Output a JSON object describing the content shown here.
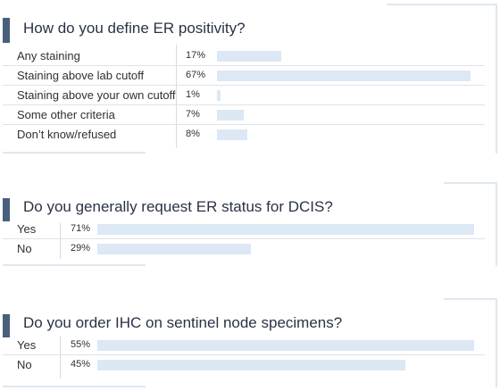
{
  "chart_data": [
    {
      "type": "bar",
      "title": "How do you define ER positivity?",
      "categories": [
        "Any staining",
        "Staining above lab cutoff",
        "Staining above your own cutoff",
        "Some other criteria",
        "Don’t know/refused"
      ],
      "values": [
        17,
        67,
        1,
        7,
        8
      ],
      "value_labels": [
        "17%",
        "67%",
        "1%",
        "7%",
        "8%"
      ],
      "unit": "%",
      "xlim": [
        0,
        67
      ]
    },
    {
      "type": "bar",
      "title": "Do you generally request ER status for DCIS?",
      "categories": [
        "Yes",
        "No"
      ],
      "values": [
        71,
        29
      ],
      "value_labels": [
        "71%",
        "29%"
      ],
      "unit": "%",
      "xlim": [
        0,
        71
      ]
    },
    {
      "type": "bar",
      "title": "Do you order IHC on sentinel node specimens?",
      "categories": [
        "Yes",
        "No"
      ],
      "values": [
        55,
        45
      ],
      "value_labels": [
        "55%",
        "45%"
      ],
      "unit": "%",
      "xlim": [
        0,
        55
      ]
    }
  ],
  "colors": {
    "bar": "#dce8f4",
    "accent": "#4a5f7c",
    "frame": "#dfe8f0"
  }
}
